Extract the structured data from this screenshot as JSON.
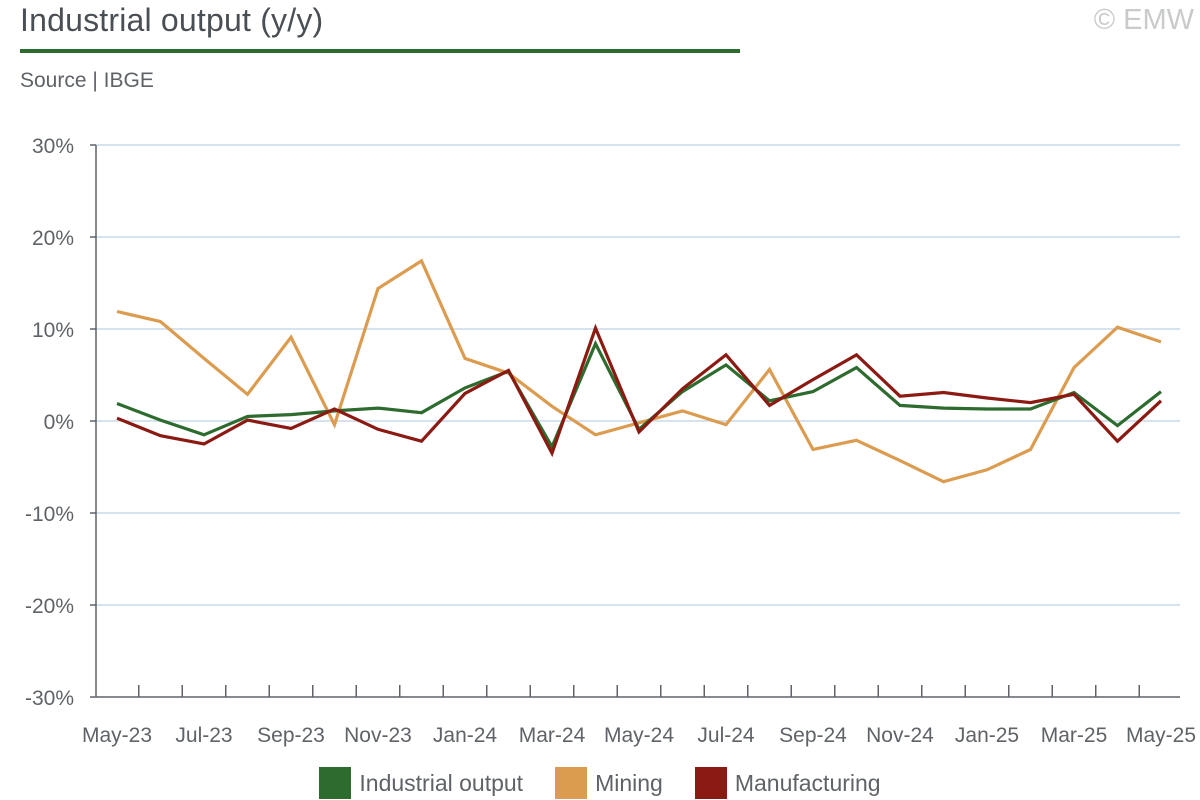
{
  "header": {
    "title": "Industrial output (y/y)",
    "copyright": "© EMW",
    "source": "Source | IBGE"
  },
  "colors": {
    "industrial": "#2e6b2e",
    "mining": "#dc9c50",
    "manufacturing": "#8b1a12",
    "grid": "#d6e2ee",
    "axis": "#5f6368"
  },
  "chart_data": {
    "type": "line",
    "x": [
      "May-23",
      "Jun-23",
      "Jul-23",
      "Aug-23",
      "Sep-23",
      "Oct-23",
      "Nov-23",
      "Dec-23",
      "Jan-24",
      "Feb-24",
      "Mar-24",
      "Apr-24",
      "May-24",
      "Jun-24",
      "Jul-24",
      "Aug-24",
      "Sep-24",
      "Oct-24",
      "Nov-24",
      "Dec-24",
      "Jan-25",
      "Feb-25",
      "Mar-25",
      "Apr-25",
      "May-25"
    ],
    "x_tick_labels": [
      "May-23",
      "Jul-23",
      "Sep-23",
      "Nov-23",
      "Jan-24",
      "Mar-24",
      "May-24",
      "Jul-24",
      "Sep-24",
      "Nov-24",
      "Jan-25",
      "Mar-25",
      "May-25"
    ],
    "y_tick_labels": [
      "30%",
      "20%",
      "10%",
      "0%",
      "-10%",
      "-20%",
      "-30%"
    ],
    "ylim": [
      -30,
      30
    ],
    "y_ticks": [
      30,
      20,
      10,
      0,
      -10,
      -20,
      -30
    ],
    "grid": "horizontal",
    "legend": "bottom-center",
    "series": [
      {
        "name": "Industrial output",
        "color_key": "industrial",
        "values": [
          1.9,
          0.1,
          -1.5,
          0.5,
          0.7,
          1.1,
          1.4,
          0.9,
          3.6,
          5.4,
          -2.8,
          8.4,
          -0.9,
          3.2,
          6.1,
          2.2,
          3.2,
          5.8,
          1.7,
          1.4,
          1.3,
          1.3,
          3.1,
          -0.5,
          3.2
        ]
      },
      {
        "name": "Mining",
        "color_key": "mining",
        "values": [
          11.9,
          10.8,
          6.8,
          2.9,
          9.1,
          -0.4,
          14.4,
          17.4,
          6.8,
          5.2,
          1.6,
          -1.5,
          -0.2,
          1.1,
          -0.4,
          5.6,
          -3.1,
          -2.1,
          -4.3,
          -6.6,
          -5.3,
          -3.1,
          5.8,
          10.2,
          8.6
        ]
      },
      {
        "name": "Manufacturing",
        "color_key": "manufacturing",
        "values": [
          0.3,
          -1.6,
          -2.5,
          0.1,
          -0.8,
          1.3,
          -0.9,
          -2.2,
          3.0,
          5.5,
          -3.5,
          10.1,
          -1.2,
          3.5,
          7.2,
          1.7,
          4.5,
          7.2,
          2.7,
          3.1,
          2.5,
          2.0,
          2.9,
          -2.2,
          2.2
        ]
      }
    ]
  }
}
